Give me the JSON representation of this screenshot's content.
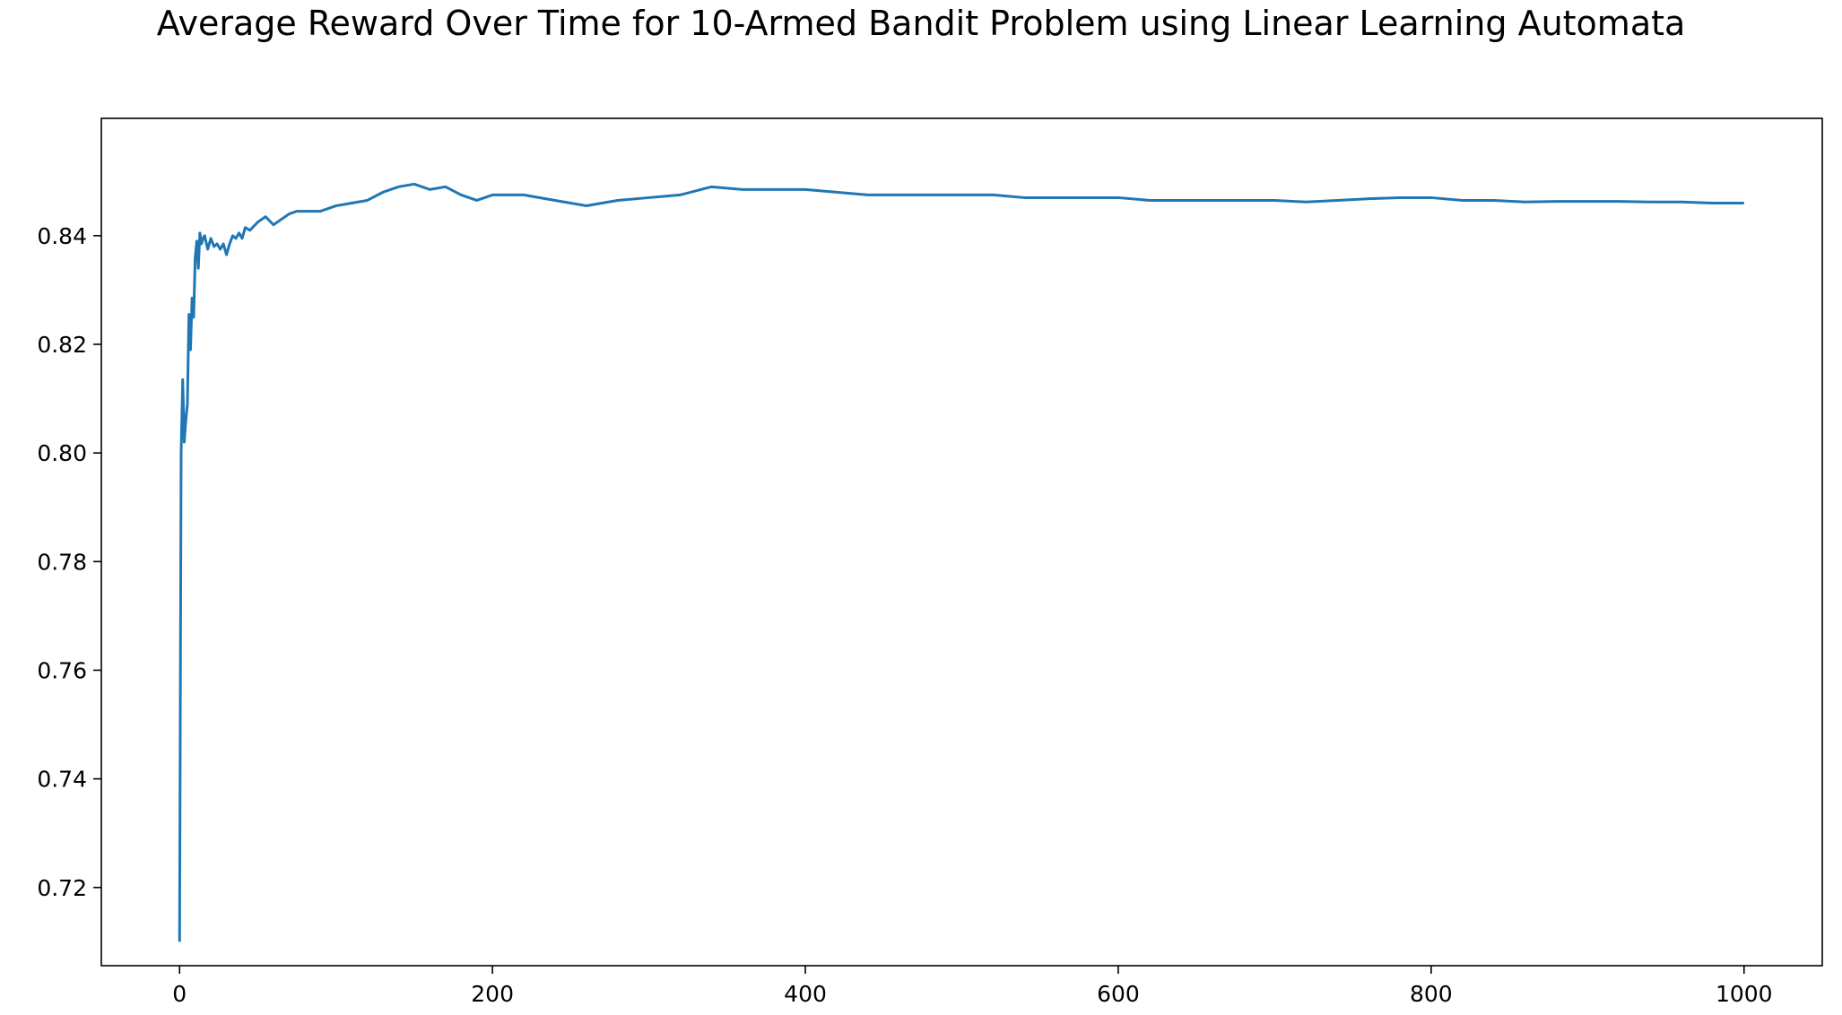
{
  "chart_data": {
    "type": "line",
    "title": "Average Reward Over Time for 10-Armed Bandit Problem using Linear Learning Automata",
    "xlabel": "",
    "ylabel": "",
    "xlim": [
      -50,
      1050
    ],
    "ylim": [
      0.7056,
      0.8616
    ],
    "x_ticks": [
      0,
      200,
      400,
      600,
      800,
      1000
    ],
    "x_tick_labels": [
      "0",
      "200",
      "400",
      "600",
      "800",
      "1000"
    ],
    "y_ticks": [
      0.72,
      0.74,
      0.76,
      0.78,
      0.8,
      0.82,
      0.84
    ],
    "y_tick_labels": [
      "0.72",
      "0.74",
      "0.76",
      "0.78",
      "0.80",
      "0.82",
      "0.84"
    ],
    "grid": false,
    "legend": "none",
    "series": [
      {
        "color": "#1f77b4",
        "x": [
          0,
          1,
          2,
          3,
          4,
          5,
          6,
          7,
          8,
          9,
          10,
          11,
          12,
          13,
          14,
          15,
          16,
          18,
          20,
          22,
          24,
          26,
          28,
          30,
          32,
          34,
          36,
          38,
          40,
          42,
          45,
          50,
          55,
          60,
          65,
          70,
          75,
          80,
          90,
          100,
          110,
          120,
          130,
          140,
          150,
          160,
          170,
          180,
          190,
          200,
          220,
          240,
          260,
          280,
          300,
          320,
          340,
          360,
          380,
          400,
          420,
          440,
          460,
          480,
          500,
          520,
          540,
          560,
          580,
          600,
          620,
          640,
          660,
          680,
          700,
          720,
          740,
          760,
          780,
          800,
          820,
          840,
          860,
          880,
          900,
          920,
          940,
          960,
          980,
          1000
        ],
        "y": [
          0.71,
          0.8,
          0.8135,
          0.802,
          0.806,
          0.809,
          0.8255,
          0.819,
          0.8285,
          0.825,
          0.836,
          0.839,
          0.834,
          0.8405,
          0.8385,
          0.8395,
          0.84,
          0.8375,
          0.8395,
          0.838,
          0.8385,
          0.8375,
          0.8385,
          0.8365,
          0.8385,
          0.84,
          0.8395,
          0.8405,
          0.8395,
          0.8415,
          0.841,
          0.8425,
          0.8435,
          0.842,
          0.843,
          0.844,
          0.8445,
          0.8445,
          0.8445,
          0.8455,
          0.846,
          0.8465,
          0.848,
          0.849,
          0.8495,
          0.8485,
          0.849,
          0.8475,
          0.8465,
          0.8475,
          0.8475,
          0.8465,
          0.8455,
          0.8465,
          0.847,
          0.8475,
          0.849,
          0.8485,
          0.8485,
          0.8485,
          0.848,
          0.8475,
          0.8475,
          0.8475,
          0.8475,
          0.8475,
          0.847,
          0.847,
          0.847,
          0.847,
          0.8465,
          0.8465,
          0.8465,
          0.8465,
          0.8465,
          0.8462,
          0.8465,
          0.8468,
          0.847,
          0.847,
          0.8465,
          0.8465,
          0.8462,
          0.8463,
          0.8463,
          0.8463,
          0.8462,
          0.8462,
          0.846,
          0.846
        ]
      }
    ]
  }
}
